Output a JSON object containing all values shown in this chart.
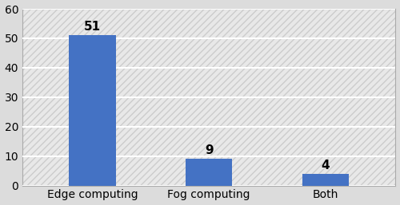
{
  "categories": [
    "Edge computing",
    "Fog computing",
    "Both"
  ],
  "values": [
    51,
    9,
    4
  ],
  "bar_color": "#4472C4",
  "ylim": [
    0,
    60
  ],
  "yticks": [
    0,
    10,
    20,
    30,
    40,
    50,
    60
  ],
  "tick_fontsize": 10,
  "annotation_fontsize": 11,
  "background_color": "#DCDCDC",
  "plot_bg_color": "#E8E8E8",
  "bar_width": 0.4,
  "grid_color": "#FFFFFF",
  "grid_linewidth": 1.5,
  "hatch_pattern": "////",
  "border_color": "#AAAAAA"
}
